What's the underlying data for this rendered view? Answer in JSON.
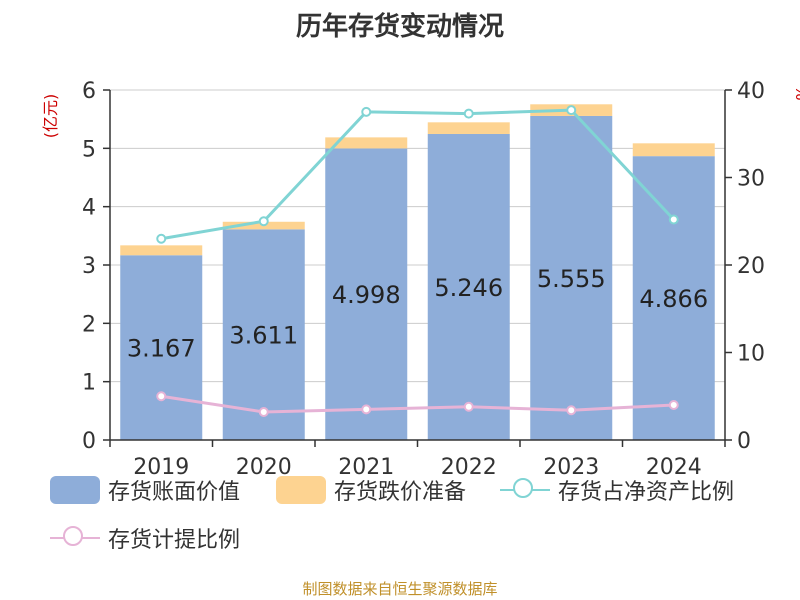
{
  "title": "历年存货变动情况",
  "footer": "制图数据来自恒生聚源数据库",
  "colors": {
    "book_value": "#8eadd9",
    "impairment": "#fdd391",
    "net_asset_ratio": "#80d4d4",
    "provision_ratio": "#e6b3d6",
    "left_unit": "#cc0000"
  },
  "chart_data": {
    "type": "bar",
    "categories": [
      "2019",
      "2020",
      "2021",
      "2022",
      "2023",
      "2024"
    ],
    "ylabel_left": "(亿元)",
    "ylabel_right": "%",
    "ylim_left": [
      0,
      6
    ],
    "ylim_right": [
      0,
      40
    ],
    "yticks_left": [
      "0",
      "1",
      "2",
      "3",
      "4",
      "5",
      "6"
    ],
    "yticks_right": [
      "0",
      "10",
      "20",
      "30",
      "40"
    ],
    "grid": true,
    "legend_position": "bottom",
    "series": [
      {
        "name": "存货账面价值",
        "kind": "bar",
        "stack": "inv",
        "axis": "left",
        "values": [
          3.167,
          3.611,
          4.998,
          5.246,
          5.555,
          4.866
        ],
        "labels": [
          "3.167",
          "3.611",
          "4.998",
          "5.246",
          "5.555",
          "4.866"
        ]
      },
      {
        "name": "存货跌价准备",
        "kind": "bar",
        "stack": "inv",
        "axis": "left",
        "values": [
          0.17,
          0.13,
          0.19,
          0.2,
          0.2,
          0.22
        ]
      },
      {
        "name": "存货占净资产比例",
        "kind": "line",
        "axis": "right",
        "values": [
          23.0,
          25.0,
          37.5,
          37.3,
          37.7,
          25.2
        ]
      },
      {
        "name": "存货计提比例",
        "kind": "line",
        "axis": "right",
        "values": [
          5.0,
          3.2,
          3.5,
          3.8,
          3.4,
          4.0
        ]
      }
    ]
  }
}
